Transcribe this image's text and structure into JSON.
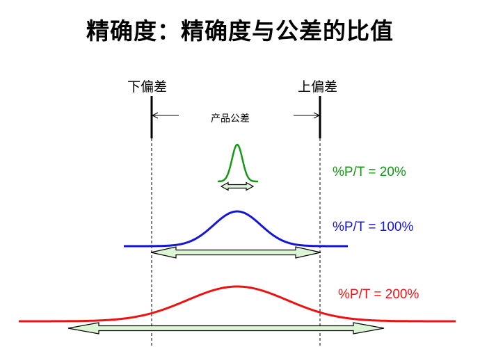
{
  "title": "精确度：精确度与公差的比值",
  "labels": {
    "lower_spec": "下偏差",
    "upper_spec": "上偏差",
    "tolerance": "产品公差"
  },
  "ratios": [
    {
      "text": "%P/T = 20%",
      "color": "#119911"
    },
    {
      "text": "%P/T = 100%",
      "color": "#1515d8"
    },
    {
      "text": "%P/T = 200%",
      "color": "#ee1111"
    }
  ],
  "colors": {
    "arrow_fill": "#dbf5d5",
    "spec_line": "#000000"
  }
}
